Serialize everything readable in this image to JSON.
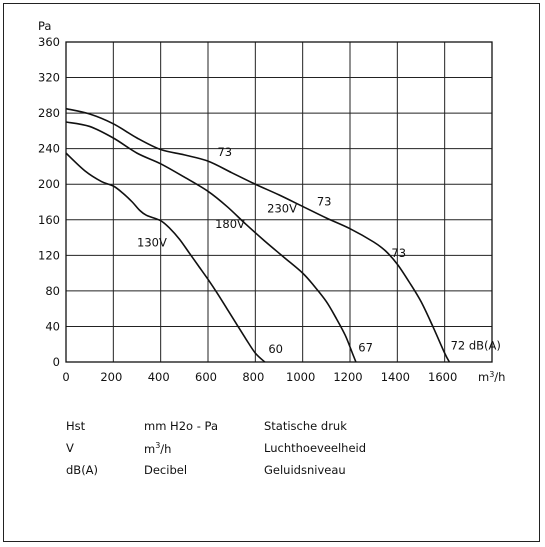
{
  "chart_data": {
    "type": "line",
    "ylabel": "Pa",
    "xunit_base": "m",
    "xunit_sup": "3",
    "xunit_tail": "/h",
    "xlim": [
      0,
      1800
    ],
    "ylim": [
      0,
      360
    ],
    "xticks": [
      0,
      200,
      400,
      600,
      800,
      1000,
      1200,
      1400,
      1600
    ],
    "yticks": [
      0,
      40,
      80,
      120,
      160,
      200,
      240,
      280,
      320,
      360
    ],
    "grid": true,
    "series": [
      {
        "name": "130V",
        "x": [
          0,
          80,
          150,
          200,
          240,
          280,
          310,
          340,
          400,
          440,
          480,
          520,
          560,
          600,
          640,
          680,
          720,
          760,
          800,
          840
        ],
        "y": [
          235,
          215,
          203,
          198,
          190,
          180,
          171,
          165,
          159,
          150,
          138,
          123,
          108,
          93,
          77,
          60,
          43,
          26,
          10,
          0
        ]
      },
      {
        "name": "180V",
        "x": [
          0,
          100,
          200,
          300,
          400,
          500,
          600,
          680,
          760,
          840,
          920,
          1000,
          1050,
          1100,
          1140,
          1180,
          1210,
          1225
        ],
        "y": [
          270,
          265,
          252,
          235,
          223,
          208,
          192,
          175,
          155,
          136,
          118,
          100,
          85,
          68,
          50,
          30,
          10,
          0
        ]
      },
      {
        "name": "230V",
        "x": [
          0,
          100,
          200,
          300,
          400,
          500,
          600,
          700,
          800,
          900,
          1000,
          1100,
          1200,
          1300,
          1350,
          1400,
          1450,
          1500,
          1550,
          1600,
          1620
        ],
        "y": [
          285,
          279,
          268,
          252,
          239,
          233,
          226,
          213,
          200,
          188,
          175,
          162,
          150,
          135,
          125,
          110,
          90,
          68,
          40,
          10,
          0
        ]
      }
    ],
    "curve_labels": [
      "130V",
      "180V",
      "230V"
    ],
    "db_labels": [
      {
        "series": 2,
        "text": "73",
        "x": 640,
        "y": 232
      },
      {
        "series": 2,
        "text": "73",
        "x": 1060,
        "y": 176
      },
      {
        "series": 2,
        "text": "73",
        "x": 1375,
        "y": 118
      },
      {
        "series": 2,
        "text": "72 dB(A)",
        "x": 1625,
        "y": 14
      },
      {
        "series": 1,
        "text": "67",
        "x": 1235,
        "y": 12
      },
      {
        "series": 0,
        "text": "60",
        "x": 855,
        "y": 10
      }
    ],
    "voltage_labels": [
      {
        "text": "130V",
        "x": 300,
        "y": 130
      },
      {
        "text": "180V",
        "x": 630,
        "y": 151
      },
      {
        "text": "230V",
        "x": 850,
        "y": 168
      }
    ]
  },
  "legend": [
    {
      "symbol": "Hst",
      "unit": "mm H2o - Pa",
      "description": "Statische druk"
    },
    {
      "symbol": "V",
      "unit_base": "m",
      "unit_sup": "3",
      "unit_tail": "/h",
      "description": "Luchthoeveelheid"
    },
    {
      "symbol": "dB(A)",
      "unit": "Decibel",
      "description": "Geluidsniveau"
    }
  ]
}
